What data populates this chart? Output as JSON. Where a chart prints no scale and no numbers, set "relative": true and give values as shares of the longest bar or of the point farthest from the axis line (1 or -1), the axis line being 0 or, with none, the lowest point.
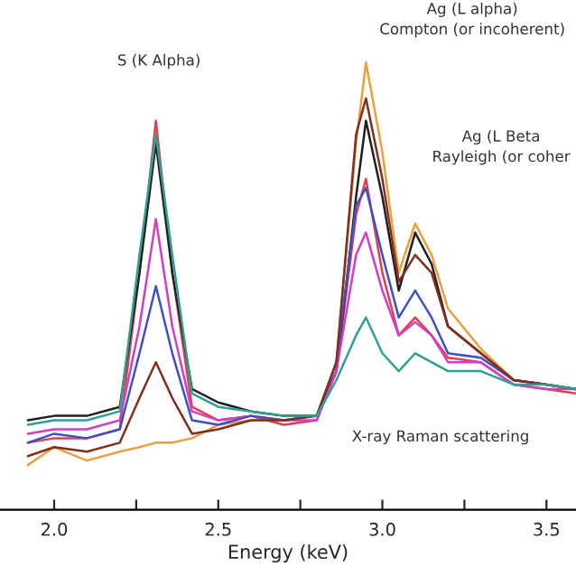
{
  "chart_data": {
    "type": "line",
    "relative": true,
    "xlabel": "Energy (keV)",
    "xlim": [
      1.835,
      3.59
    ],
    "xticks": [
      {
        "value": 2,
        "label": "2.0"
      },
      {
        "value": 2.25,
        "label": null
      },
      2.5,
      {
        "value": 2.75,
        "label": null
      },
      {
        "value": 3,
        "label": "3.0"
      },
      {
        "value": 3.25,
        "label": null
      },
      3.5
    ],
    "grid": false,
    "legend": false,
    "marker": "none",
    "line_style": "solid",
    "x": [
      1.92,
      2.0,
      2.1,
      2.2,
      2.26,
      2.31,
      2.36,
      2.42,
      2.5,
      2.6,
      2.7,
      2.8,
      2.86,
      2.92,
      2.95,
      3.0,
      3.05,
      3.1,
      3.15,
      3.2,
      3.3,
      3.4,
      3.5,
      3.59
    ],
    "series": [
      {
        "color": "#e8a040",
        "values": [
          0.1,
          0.14,
          0.11,
          0.13,
          0.14,
          0.15,
          0.15,
          0.16,
          0.19,
          0.2,
          0.2,
          0.21,
          0.33,
          0.82,
          1.0,
          0.8,
          0.53,
          0.64,
          0.57,
          0.45,
          0.36,
          0.29,
          0.28,
          0.27
        ]
      },
      {
        "color": "#e04050",
        "values": [
          0.15,
          0.16,
          0.16,
          0.18,
          0.53,
          0.87,
          0.53,
          0.23,
          0.2,
          0.21,
          0.19,
          0.2,
          0.31,
          0.66,
          0.74,
          0.53,
          0.39,
          0.43,
          0.39,
          0.34,
          0.33,
          0.28,
          0.27,
          0.26
        ]
      },
      {
        "color": "#202020",
        "values": [
          0.2,
          0.21,
          0.21,
          0.23,
          0.53,
          0.82,
          0.53,
          0.27,
          0.24,
          0.22,
          0.21,
          0.21,
          0.31,
          0.7,
          0.87,
          0.7,
          0.49,
          0.62,
          0.55,
          0.41,
          0.35,
          0.29,
          0.28,
          0.27
        ]
      },
      {
        "color": "#d040c0",
        "values": [
          0.17,
          0.18,
          0.18,
          0.2,
          0.41,
          0.65,
          0.41,
          0.22,
          0.2,
          0.21,
          0.2,
          0.2,
          0.31,
          0.57,
          0.62,
          0.49,
          0.39,
          0.42,
          0.39,
          0.33,
          0.33,
          0.28,
          0.27,
          0.27
        ]
      },
      {
        "color": "#4050c0",
        "values": [
          0.15,
          0.17,
          0.16,
          0.18,
          0.35,
          0.5,
          0.35,
          0.2,
          0.19,
          0.21,
          0.2,
          0.21,
          0.33,
          0.68,
          0.72,
          0.57,
          0.43,
          0.49,
          0.43,
          0.35,
          0.34,
          0.29,
          0.28,
          0.27
        ]
      },
      {
        "color": "#803020",
        "values": [
          0.12,
          0.14,
          0.13,
          0.15,
          0.25,
          0.33,
          0.25,
          0.17,
          0.18,
          0.2,
          0.2,
          0.21,
          0.33,
          0.84,
          0.92,
          0.74,
          0.51,
          0.57,
          0.53,
          0.41,
          0.35,
          0.29,
          0.28,
          0.27
        ]
      },
      {
        "color": "#30a090",
        "values": [
          0.19,
          0.2,
          0.2,
          0.22,
          0.57,
          0.84,
          0.57,
          0.26,
          0.23,
          0.22,
          0.21,
          0.21,
          0.29,
          0.39,
          0.43,
          0.35,
          0.31,
          0.35,
          0.33,
          0.31,
          0.31,
          0.28,
          0.28,
          0.27
        ]
      }
    ],
    "annotations": [
      "S (K Alpha)",
      "Ag (L alpha)\nCompton (or incoherent)",
      "Ag (L Beta\nRayleigh (or coher",
      "X-ray Raman scattering"
    ]
  }
}
